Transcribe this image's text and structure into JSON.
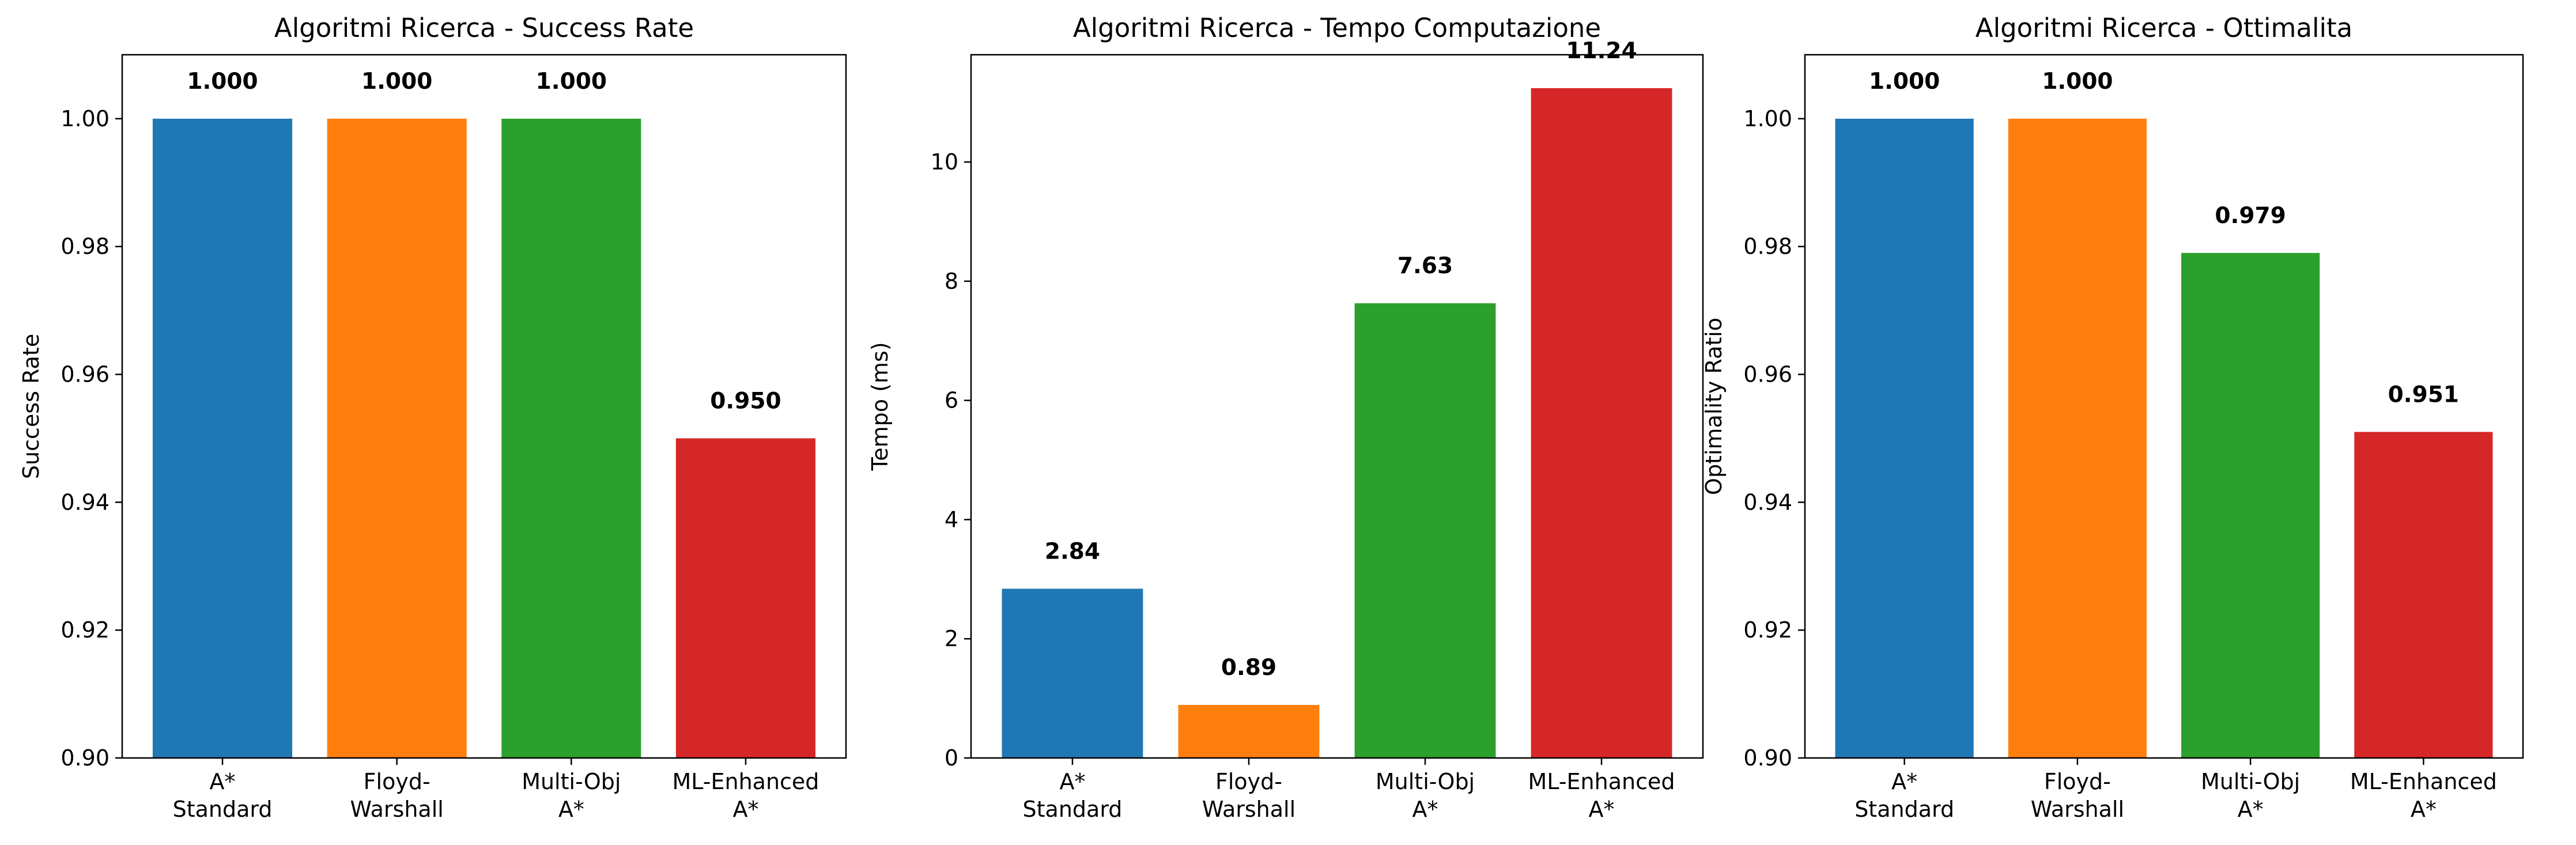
{
  "colors": [
    "#1f77b4",
    "#ff7f0e",
    "#2ca02c",
    "#d62728"
  ],
  "chart_data": [
    {
      "type": "bar",
      "title": "Algoritmi Ricerca - Success Rate",
      "ylabel": "Success Rate",
      "categories": [
        [
          "A*",
          "Standard"
        ],
        [
          "Floyd-",
          "Warshall"
        ],
        [
          "Multi-Obj",
          "A*"
        ],
        [
          "ML-Enhanced",
          "A*"
        ]
      ],
      "values": [
        1.0,
        1.0,
        1.0,
        0.95
      ],
      "value_labels": [
        "1.000",
        "1.000",
        "1.000",
        "0.950"
      ],
      "ylim": [
        0.9,
        1.01
      ],
      "yticks": [
        0.9,
        0.92,
        0.94,
        0.96,
        0.98,
        1.0
      ],
      "ytick_labels": [
        "0.90",
        "0.92",
        "0.94",
        "0.96",
        "0.98",
        "1.00"
      ],
      "grid": false
    },
    {
      "type": "bar",
      "title": "Algoritmi Ricerca - Tempo Computazione",
      "ylabel": "Tempo (ms)",
      "categories": [
        [
          "A*",
          "Standard"
        ],
        [
          "Floyd-",
          "Warshall"
        ],
        [
          "Multi-Obj",
          "A*"
        ],
        [
          "ML-Enhanced",
          "A*"
        ]
      ],
      "values": [
        2.84,
        0.89,
        7.63,
        11.24
      ],
      "value_labels": [
        "2.84",
        "0.89",
        "7.63",
        "11.24"
      ],
      "ylim": [
        0,
        11.8
      ],
      "yticks": [
        0,
        2,
        4,
        6,
        8,
        10
      ],
      "ytick_labels": [
        "0",
        "2",
        "4",
        "6",
        "8",
        "10"
      ],
      "grid": false
    },
    {
      "type": "bar",
      "title": "Algoritmi Ricerca - Ottimalita",
      "ylabel": "Optimality Ratio",
      "categories": [
        [
          "A*",
          "Standard"
        ],
        [
          "Floyd-",
          "Warshall"
        ],
        [
          "Multi-Obj",
          "A*"
        ],
        [
          "ML-Enhanced",
          "A*"
        ]
      ],
      "values": [
        1.0,
        1.0,
        0.979,
        0.951
      ],
      "value_labels": [
        "1.000",
        "1.000",
        "0.979",
        "0.951"
      ],
      "ylim": [
        0.9,
        1.01
      ],
      "yticks": [
        0.9,
        0.92,
        0.94,
        0.96,
        0.98,
        1.0
      ],
      "ytick_labels": [
        "0.90",
        "0.92",
        "0.94",
        "0.96",
        "0.98",
        "1.00"
      ],
      "grid": false
    }
  ]
}
